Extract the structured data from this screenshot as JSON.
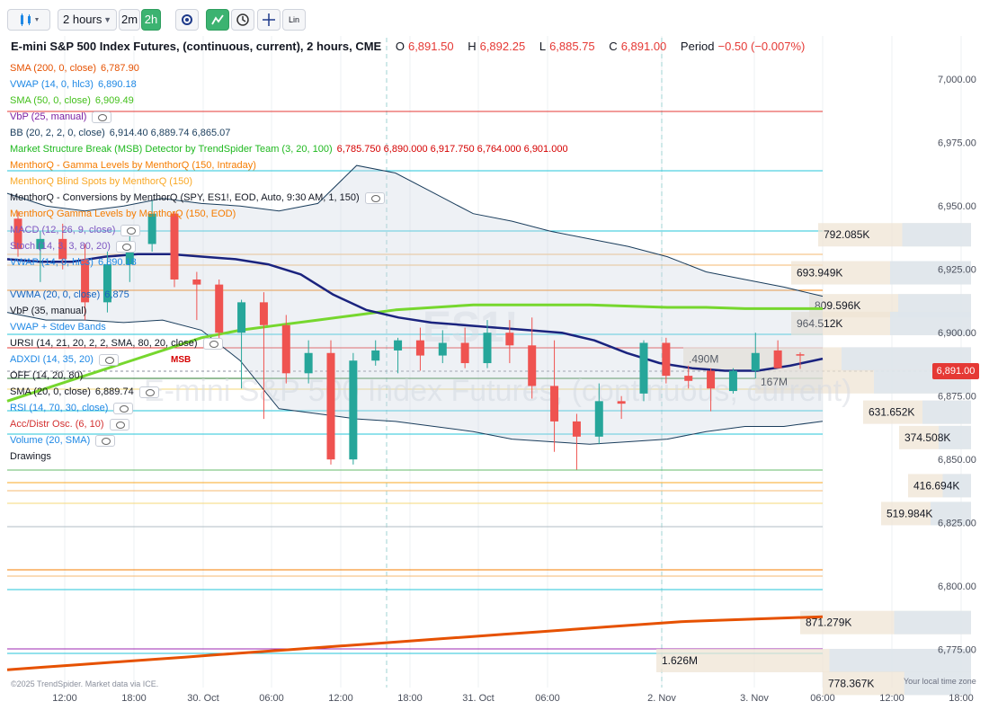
{
  "toolbar": {
    "interval_label": "2 hours",
    "btn_2m": "2m",
    "btn_2h": "2h",
    "lin_label": "Lin"
  },
  "header": {
    "title": "E-mini S&P 500 Index Futures, (continuous, current), 2 hours, CME",
    "open_label": "O",
    "open": "6,891.50",
    "high_label": "H",
    "high": "6,892.25",
    "low_label": "L",
    "low": "6,885.75",
    "close_label": "C",
    "close": "6,891.00",
    "period_label": "Period",
    "period": "−0.50 (−0.007%)"
  },
  "indicators": [
    {
      "name": "SMA (200, 0, close)",
      "value": "6,787.90",
      "color": "#e65100",
      "eye": false
    },
    {
      "name": "VWAP (14, 0, hlc3)",
      "value": "6,890.18",
      "color": "#1e88e5",
      "eye": false
    },
    {
      "name": "SMA (50, 0, close)",
      "value": "6,909.49",
      "color": "#43c01b",
      "eye": false
    },
    {
      "name": "VbP (25, manual)",
      "value": "",
      "color": "#7b1fa2",
      "eye": true
    },
    {
      "name": "BB (20, 2, 2, 0, close)",
      "value": "6,914.40 6,889.74 6,865.07",
      "color": "#1a3d5c",
      "eye": false
    },
    {
      "name": "Market Structure Break (MSB) Detector by TrendSpider Team (3, 20, 100)",
      "value": "6,785.750 6,890.000 6,917.750 6,764.000 6,901.000",
      "color": "#1fb81f",
      "value_color": "#d50000",
      "eye": false
    },
    {
      "name": "MenthorQ - Gamma Levels by MenthorQ (150, Intraday)",
      "value": "",
      "color": "#f57c00",
      "eye": false
    },
    {
      "name": "MenthorQ Blind Spots by MenthorQ (150)",
      "value": "",
      "color": "#f9a825",
      "eye": false
    },
    {
      "name": "MenthorQ - Conversions by MenthorQ (SPY, ES1!, EOD, Auto, 9:30 AM, 1, 150)",
      "value": "",
      "color": "#131722",
      "eye": true
    },
    {
      "name": "MenthorQ Gamma Levels by MenthorQ (150, EOD)",
      "value": "",
      "color": "#f57c00",
      "eye": false
    },
    {
      "name": "MACD (12, 26, 9, close)",
      "value": "",
      "color": "#7e57c2",
      "eye": true
    },
    {
      "name": "Stoch (14, 3, 3, 80, 20)",
      "value": "",
      "color": "#7e57c2",
      "eye": true
    },
    {
      "name": "VWAP (14, 0, hlc3)",
      "value": "6,890.18",
      "color": "#1e88e5",
      "eye": false
    },
    {
      "name": "",
      "value": "",
      "color": "#131722",
      "eye": false
    },
    {
      "name": "VWMA (20, 0, close)",
      "value": "6,875",
      "color": "#1565c0",
      "eye": false
    },
    {
      "name": "VbP (35, manual)",
      "value": "",
      "color": "#131722",
      "eye": false
    },
    {
      "name": "VWAP + Stdev Bands",
      "value": "",
      "color": "#1e88e5",
      "eye": false
    },
    {
      "name": "URSI (14, 21, 20, 2, 2, SMA, 80, 20, close)",
      "value": "",
      "color": "#131722",
      "eye": true
    },
    {
      "name": "ADXDI (14, 35, 20)",
      "value": "",
      "color": "#1e88e5",
      "eye": true
    },
    {
      "name": "OFF (14, 20, 80)",
      "value": "",
      "color": "#131722",
      "eye": false
    },
    {
      "name": "SMA (20, 0, close)",
      "value": "6,889.74",
      "color": "#131722",
      "eye": true
    },
    {
      "name": "RSI (14, 70, 30, close)",
      "value": "",
      "color": "#1e88e5",
      "eye": true
    },
    {
      "name": "Acc/Distr Osc. (6, 10)",
      "value": "",
      "color": "#d32f2f",
      "eye": true
    },
    {
      "name": "Volume (20, SMA)",
      "value": "",
      "color": "#1e88e5",
      "eye": true
    },
    {
      "name": "Drawings",
      "value": "",
      "color": "#131722",
      "eye": false
    }
  ],
  "current_price_tag": "6,891.00",
  "msb_label": "MSB",
  "watermark": {
    "symbol": "ES1!",
    "text": "E-mini S&P 500 Index Futures, (continuous, current)"
  },
  "footer": {
    "copyright": "©2025 TrendSpider. Market data via ICE.",
    "tz": "Your local time zone"
  },
  "colors": {
    "up": "#26a69a",
    "down": "#ef5350",
    "sma200": "#e65100",
    "sma50": "#76d72e",
    "sma20": "#1a237e",
    "bb": "#1a3d5c",
    "vwap": "#1e88e5"
  },
  "chart_data": {
    "type": "candlestick",
    "y_axis": {
      "range": [
        6760,
        7010
      ],
      "ticks": [
        "7,000.00",
        "6,975.00",
        "6,950.00",
        "6,925.00",
        "6,900.00",
        "6,875.00",
        "6,850.00",
        "6,825.00",
        "6,800.00",
        "6,775.00"
      ],
      "tick_values": [
        7000,
        6975,
        6950,
        6925,
        6900,
        6875,
        6850,
        6825,
        6800,
        6775
      ]
    },
    "x_axis": {
      "ticks": [
        "12:00",
        "18:00",
        "30. Oct",
        "06:00",
        "12:00",
        "18:00",
        "31. Oct",
        "06:00",
        "2. Nov",
        "3. Nov",
        "06:00",
        "12:00",
        "18:00"
      ]
    },
    "candles": [
      {
        "o": 6945,
        "h": 6948,
        "l": 6930,
        "c": 6933
      },
      {
        "o": 6933,
        "h": 6940,
        "l": 6920,
        "c": 6937
      },
      {
        "o": 6937,
        "h": 6943,
        "l": 6925,
        "c": 6929
      },
      {
        "o": 6929,
        "h": 6935,
        "l": 6905,
        "c": 6912
      },
      {
        "o": 6912,
        "h": 6932,
        "l": 6908,
        "c": 6927
      },
      {
        "o": 6927,
        "h": 6938,
        "l": 6920,
        "c": 6935
      },
      {
        "o": 6935,
        "h": 6952,
        "l": 6932,
        "c": 6947
      },
      {
        "o": 6947,
        "h": 6948,
        "l": 6918,
        "c": 6921
      },
      {
        "o": 6921,
        "h": 6924,
        "l": 6905,
        "c": 6919
      },
      {
        "o": 6919,
        "h": 6921,
        "l": 6896,
        "c": 6900
      },
      {
        "o": 6900,
        "h": 6913,
        "l": 6878,
        "c": 6912
      },
      {
        "o": 6912,
        "h": 6916,
        "l": 6866,
        "c": 6903
      },
      {
        "o": 6903,
        "h": 6907,
        "l": 6880,
        "c": 6884
      },
      {
        "o": 6884,
        "h": 6897,
        "l": 6880,
        "c": 6892
      },
      {
        "o": 6892,
        "h": 6897,
        "l": 6848,
        "c": 6850
      },
      {
        "o": 6850,
        "h": 6892,
        "l": 6848,
        "c": 6889
      },
      {
        "o": 6889,
        "h": 6897,
        "l": 6887,
        "c": 6893
      },
      {
        "o": 6893,
        "h": 6898,
        "l": 6884,
        "c": 6897
      },
      {
        "o": 6897,
        "h": 6902,
        "l": 6885,
        "c": 6891
      },
      {
        "o": 6891,
        "h": 6901,
        "l": 6888,
        "c": 6896
      },
      {
        "o": 6896,
        "h": 6902,
        "l": 6886,
        "c": 6888
      },
      {
        "o": 6888,
        "h": 6905,
        "l": 6886,
        "c": 6900
      },
      {
        "o": 6900,
        "h": 6905,
        "l": 6888,
        "c": 6895
      },
      {
        "o": 6895,
        "h": 6906,
        "l": 6874,
        "c": 6879
      },
      {
        "o": 6879,
        "h": 6897,
        "l": 6853,
        "c": 6865
      },
      {
        "o": 6865,
        "h": 6868,
        "l": 6846,
        "c": 6859
      },
      {
        "o": 6859,
        "h": 6880,
        "l": 6856,
        "c": 6873
      },
      {
        "o": 6873,
        "h": 6875,
        "l": 6866,
        "c": 6872
      },
      {
        "o": 6876,
        "h": 6897,
        "l": 6873,
        "c": 6896
      },
      {
        "o": 6896,
        "h": 6898,
        "l": 6880,
        "c": 6883
      },
      {
        "o": 6883,
        "h": 6887,
        "l": 6878,
        "c": 6881
      },
      {
        "o": 6885,
        "h": 6886,
        "l": 6869,
        "c": 6878
      },
      {
        "o": 6877,
        "h": 6886,
        "l": 6876,
        "c": 6885
      },
      {
        "o": 6885,
        "h": 6900,
        "l": 6882,
        "c": 6892
      },
      {
        "o": 6893,
        "h": 6897,
        "l": 6886,
        "c": 6886
      },
      {
        "o": 6891.5,
        "h": 6892.25,
        "l": 6885.75,
        "c": 6891
      }
    ],
    "series": [
      {
        "name": "SMA (200, 0, close)",
        "values": [
          6767,
          6768,
          6769,
          6770,
          6771,
          6772,
          6773,
          6774,
          6775,
          6776,
          6777,
          6778,
          6779,
          6780,
          6781,
          6782,
          6783,
          6784,
          6785,
          6786,
          6786.5,
          6787,
          6787.5,
          6787.9
        ]
      },
      {
        "name": "SMA (50, 0, close)",
        "values": [
          6873,
          6878,
          6883,
          6888,
          6893,
          6898,
          6901,
          6903,
          6905,
          6907,
          6909,
          6910,
          6911,
          6911,
          6911,
          6911,
          6910.5,
          6910,
          6910,
          6909.5,
          6909.5,
          6909.49
        ]
      },
      {
        "name": "SMA (20, 0, close)",
        "values": [
          6929,
          6928,
          6928,
          6930,
          6931,
          6931,
          6930,
          6929,
          6927,
          6923,
          6915,
          6909,
          6906,
          6904,
          6903,
          6902,
          6901,
          6900,
          6897,
          6892,
          6888,
          6886,
          6885,
          6885,
          6887,
          6889.74
        ]
      },
      {
        "name": "BB upper",
        "values": [
          6955,
          6950,
          6948,
          6950,
          6953,
          6951,
          6950,
          6948,
          6951,
          6966,
          6963,
          6955,
          6947,
          6944,
          6940,
          6937,
          6934,
          6930,
          6924,
          6921,
          6918,
          6914.4
        ]
      },
      {
        "name": "BB lower",
        "values": [
          6908,
          6905,
          6905,
          6904,
          6905,
          6901,
          6889,
          6870,
          6868,
          6866,
          6865,
          6863,
          6861,
          6858,
          6857,
          6856,
          6857,
          6858,
          6861,
          6863,
          6863,
          6865.07
        ]
      }
    ],
    "volume_profile": [
      {
        "label": "792.085K",
        "price": 6939
      },
      {
        "label": "693.949K",
        "price": 6924
      },
      {
        "label": "809.596K",
        "price": 6911
      },
      {
        "label": "964.512K",
        "price": 6904
      },
      {
        "label": ".490M",
        "price": 6890
      },
      {
        "label": "167M",
        "price": 6881
      },
      {
        "label": "631.652K",
        "price": 6869
      },
      {
        "label": "374.508K",
        "price": 6859
      },
      {
        "label": "416.694K",
        "price": 6840
      },
      {
        "label": "519.984K",
        "price": 6829
      },
      {
        "label": "871.279K",
        "price": 6786
      },
      {
        "label": "1.626M",
        "price": 6771
      },
      {
        "label": "778.367K",
        "price": 6762
      }
    ]
  }
}
